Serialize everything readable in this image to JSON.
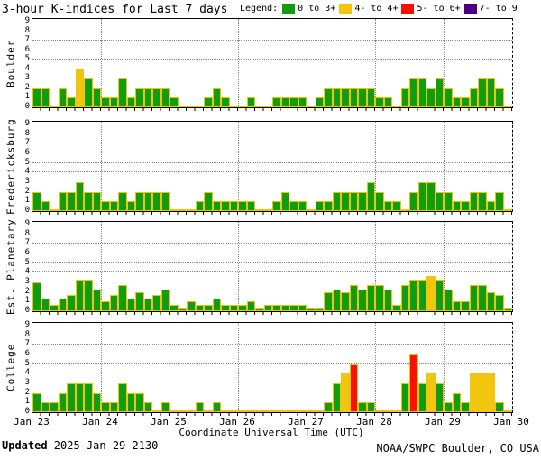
{
  "title": "3-hour K-indices for Last 7 days",
  "legend": {
    "label": "Legend:",
    "items": [
      {
        "label": "0 to 3+",
        "color": "#109e10",
        "min": 0,
        "max": 3.49
      },
      {
        "label": "4- to 4+",
        "color": "#f2c50f",
        "min": 3.5,
        "max": 4.49
      },
      {
        "label": "5- to 6+",
        "color": "#fb0f00",
        "min": 4.5,
        "max": 6.49
      },
      {
        "label": "7- to 9",
        "color": "#4b0082",
        "min": 6.5,
        "max": 9
      }
    ]
  },
  "xaxis": {
    "title": "Coordinate Universal Time (UTC)",
    "tick_labels": [
      "Jan 23",
      "Jan 24",
      "Jan 25",
      "Jan 26",
      "Jan 27",
      "Jan 28",
      "Jan 29",
      "Jan 30"
    ]
  },
  "yaxis": {
    "tick_labels": [
      0,
      1,
      2,
      3,
      4,
      5,
      6,
      7,
      8,
      9
    ],
    "gridline_levels": [
      4,
      5,
      7
    ],
    "range": [
      0,
      9
    ]
  },
  "footer": {
    "updated_label": "Updated",
    "updated_value": " 2025 Jan 29 2130",
    "credit": "NOAA/SWPC Boulder, CO USA"
  },
  "chart_data": [
    {
      "type": "bar",
      "station": "Boulder",
      "bin_hours": 3,
      "days": [
        "Jan 23",
        "Jan 24",
        "Jan 25",
        "Jan 26",
        "Jan 27",
        "Jan 28",
        "Jan 29"
      ],
      "values": [
        2,
        2,
        0,
        2,
        1,
        4,
        3,
        2,
        1,
        1,
        3,
        1,
        2,
        2,
        2,
        2,
        1,
        0,
        0,
        0,
        1,
        2,
        1,
        0,
        0,
        1,
        0,
        0,
        1,
        1,
        1,
        1,
        0,
        1,
        2,
        2,
        2,
        2,
        2,
        2,
        1,
        1,
        0,
        2,
        3,
        3,
        2,
        3,
        2,
        1,
        1,
        2,
        3,
        3,
        2,
        0
      ]
    },
    {
      "type": "bar",
      "station": "Fredericksburg",
      "bin_hours": 3,
      "days": [
        "Jan 23",
        "Jan 24",
        "Jan 25",
        "Jan 26",
        "Jan 27",
        "Jan 28",
        "Jan 29"
      ],
      "values": [
        2,
        1,
        0,
        2,
        2,
        3,
        2,
        2,
        1,
        1,
        2,
        1,
        2,
        2,
        2,
        2,
        0,
        0,
        0,
        1,
        2,
        1,
        1,
        1,
        1,
        1,
        0,
        0,
        1,
        2,
        1,
        1,
        0,
        1,
        1,
        2,
        2,
        2,
        2,
        3,
        2,
        1,
        1,
        0,
        2,
        3,
        3,
        2,
        2,
        1,
        1,
        2,
        2,
        1,
        2,
        0
      ]
    },
    {
      "type": "bar",
      "station": "Est. Planetary",
      "bin_hours": 3,
      "days": [
        "Jan 23",
        "Jan 24",
        "Jan 25",
        "Jan 26",
        "Jan 27",
        "Jan 28",
        "Jan 29"
      ],
      "values": [
        3,
        1.3,
        0.7,
        1.3,
        1.7,
        3.3,
        3.3,
        2.3,
        1,
        1.7,
        2.7,
        1.3,
        2,
        1.3,
        1.7,
        2.3,
        0.7,
        0.3,
        1,
        0.7,
        0.7,
        1.3,
        0.7,
        0.7,
        0.7,
        1,
        0.3,
        0.7,
        0.7,
        0.7,
        0.7,
        0.7,
        0.3,
        0.3,
        2,
        2.3,
        2,
        2.7,
        2.3,
        2.7,
        2.7,
        2.3,
        0.7,
        2.7,
        3.3,
        3.3,
        3.7,
        3.3,
        2.3,
        1,
        1,
        2.7,
        2.7,
        2,
        1.7,
        0.3
      ]
    },
    {
      "type": "bar",
      "station": "College",
      "bin_hours": 3,
      "days": [
        "Jan 23",
        "Jan 24",
        "Jan 25",
        "Jan 26",
        "Jan 27",
        "Jan 28",
        "Jan 29"
      ],
      "values": [
        2,
        1,
        1,
        2,
        3,
        3,
        3,
        2,
        1,
        1,
        3,
        2,
        2,
        1,
        0,
        1,
        0,
        0,
        0,
        1,
        0,
        1,
        0,
        0,
        0,
        0,
        0,
        0,
        0,
        0,
        0,
        0,
        0,
        0,
        1,
        3,
        4,
        5,
        1,
        1,
        0,
        0,
        0,
        3,
        6,
        3,
        4,
        3,
        1,
        2,
        1,
        4,
        4,
        4,
        1,
        0
      ]
    }
  ]
}
